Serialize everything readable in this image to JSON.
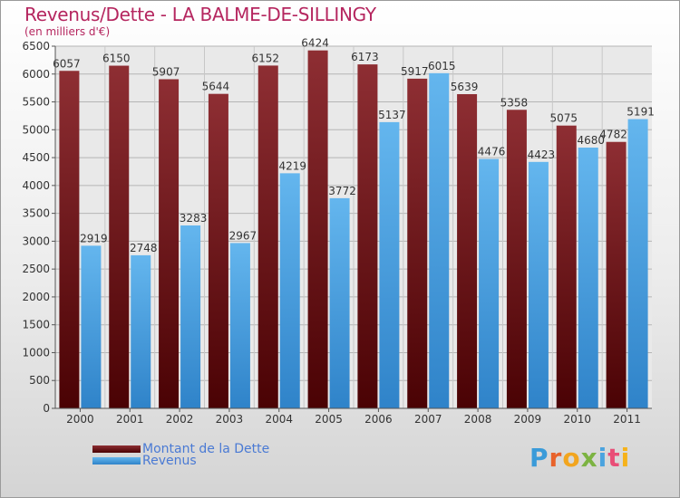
{
  "title": "Revenus/Dette - LA BALME-DE-SILLINGY",
  "subtitle": "(en milliers d'€)",
  "logo": {
    "text": "Proxiti",
    "letter_colors": [
      "#3a9bd9",
      "#e8622a",
      "#f2a51f",
      "#7cb342",
      "#4aa3df",
      "#e94e77",
      "#f6b21a"
    ]
  },
  "colors": {
    "dette": "#6b0f12",
    "revenus": "#3d9be0",
    "title": "#b5265f",
    "legend_text": "#4a7ad4"
  },
  "chart_data": {
    "type": "bar",
    "title": "Revenus/Dette - LA BALME-DE-SILLINGY",
    "ylabel": "(en milliers d'€)",
    "xlabel": "",
    "ylim": [
      0,
      6500
    ],
    "yticks": [
      0,
      500,
      1000,
      1500,
      2000,
      2500,
      3000,
      3500,
      4000,
      4500,
      5000,
      5500,
      6000,
      6500
    ],
    "grid": true,
    "legend_position": "bottom-left",
    "categories": [
      "2000",
      "2001",
      "2002",
      "2003",
      "2004",
      "2005",
      "2006",
      "2007",
      "2008",
      "2009",
      "2010",
      "2011"
    ],
    "series": [
      {
        "name": "Montant de la Dette",
        "values": [
          6057,
          6150,
          5907,
          5644,
          6152,
          6424,
          6173,
          5917,
          5639,
          5358,
          5075,
          4782
        ]
      },
      {
        "name": "Revenus",
        "values": [
          2919,
          2748,
          3283,
          2967,
          4219,
          3772,
          5137,
          6015,
          4476,
          4423,
          4680,
          5191
        ]
      }
    ],
    "data_labels": [
      [
        "6057",
        "6150",
        "5907",
        "5644",
        "6152",
        "6424",
        "6173",
        "5917",
        "5639",
        "5358",
        "5075",
        "4782"
      ],
      [
        "2919",
        "2748",
        "3283",
        "2967",
        "4219",
        "3772",
        "5137",
        "6015",
        "4476",
        "4423",
        "4680",
        "5191"
      ]
    ]
  }
}
